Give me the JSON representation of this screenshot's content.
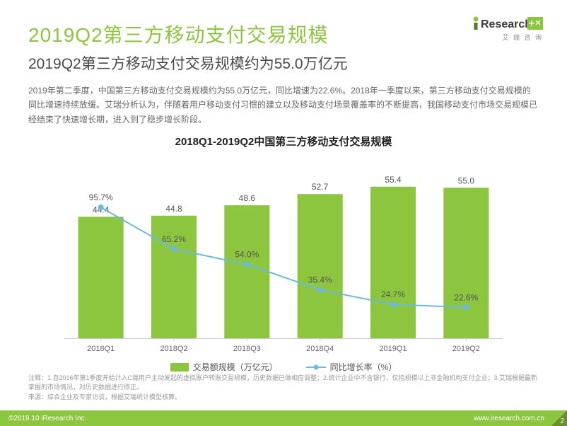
{
  "header": {
    "title": "2019Q2第三方移动支付交易规模",
    "subtitle": "2019Q2第三方移动支付交易规模约为55.0万亿元",
    "description": "2019年第二季度，中国第三方移动支付交易规模约为55.0万亿元，同比增速为22.6%。2018年一季度以来，第三方移动支付交易规模的同比增速持续放缓。艾瑞分析认为，伴随着用户移动支付习惯的建立以及移动支付场景覆盖率的不断提高，我国移动支付市场交易规模已经结束了快速增长期，进入到了稳步增长阶段。"
  },
  "logo": {
    "brand": "iResearch",
    "sub": "艾 瑞 咨 询"
  },
  "chart": {
    "type": "bar+line",
    "title": "2018Q1-2019Q2中国第三方移动支付交易规模",
    "categories": [
      "2018Q1",
      "2018Q2",
      "2018Q3",
      "2018Q4",
      "2019Q1",
      "2019Q2"
    ],
    "bars": {
      "label": "交易额规模（万亿元）",
      "values": [
        44.4,
        44.8,
        48.6,
        52.7,
        55.4,
        55.0
      ],
      "value_labels": [
        "44.4",
        "44.8",
        "48.6",
        "52.7",
        "55.4",
        "55.0"
      ],
      "color": "#8cc63f",
      "ymin": 0,
      "ymax": 60,
      "bar_width_frac": 0.62
    },
    "line": {
      "label": "同比增长率（%）",
      "values": [
        95.7,
        65.2,
        54.0,
        35.4,
        24.7,
        22.6
      ],
      "value_labels": [
        "95.7%",
        "65.2%",
        "54.0%",
        "35.4%",
        "24.7%",
        "22.6%"
      ],
      "color": "#6bb7e6",
      "ymin": 0,
      "ymax": 120
    },
    "background_color": "#ffffff",
    "axis_color": "#cccccc",
    "tick_fontsize": 11,
    "value_fontsize": 12
  },
  "notes": {
    "line1": "注释：1.自2016年第1季度开始计入C端用户主动发起的虚拟账户转账交易规模，历史数据已做相应调整；2.统计企业中不含银行，仅指规模以上非金融机构支付企业；3.艾瑞根据最新掌握的市场情况，对历史数据进行修正。",
    "line2": "来源：综合企业及专家访谈，根据艾瑞统计模型核算。"
  },
  "footer": {
    "copyright": "©2019.10 iResearch Inc.",
    "site": "www.iresearch.com.cn",
    "page": "2"
  }
}
